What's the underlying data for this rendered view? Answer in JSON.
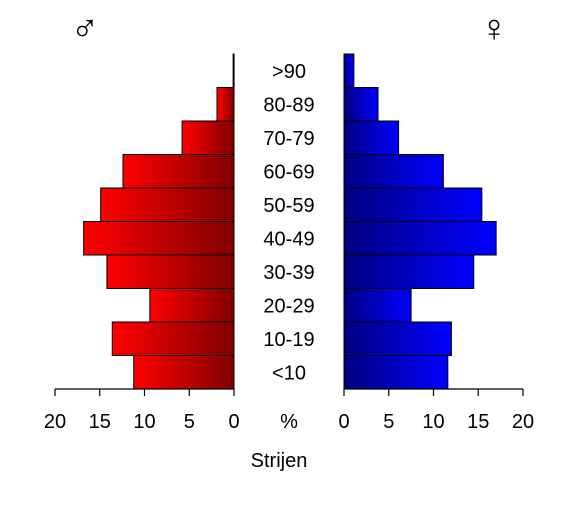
{
  "chart_data": {
    "type": "bar",
    "subtype": "population-pyramid",
    "categories": [
      "<10",
      "10-19",
      "20-29",
      "30-39",
      "40-49",
      "50-59",
      "60-69",
      "70-79",
      "80-89",
      ">90"
    ],
    "series": [
      {
        "name": "♂",
        "values": [
          11.2,
          13.6,
          9.4,
          14.2,
          16.8,
          14.9,
          12.4,
          5.8,
          1.9,
          0.1
        ],
        "color": "#ff0000",
        "color_dark": "#800000"
      },
      {
        "name": "♀",
        "values": [
          11.6,
          12.0,
          7.5,
          14.5,
          17.0,
          15.4,
          11.1,
          6.1,
          3.8,
          1.1
        ],
        "color": "#0000ff",
        "color_dark": "#000080"
      }
    ],
    "xlim": [
      0,
      20
    ],
    "left_ticks": [
      "20",
      "15",
      "10",
      "5",
      "0"
    ],
    "right_ticks": [
      "0",
      "5",
      "10",
      "15",
      "20"
    ],
    "unit_label": "%",
    "xlabel": "Strijen",
    "male_symbol": "♂",
    "female_symbol": "♀",
    "grid": false
  }
}
